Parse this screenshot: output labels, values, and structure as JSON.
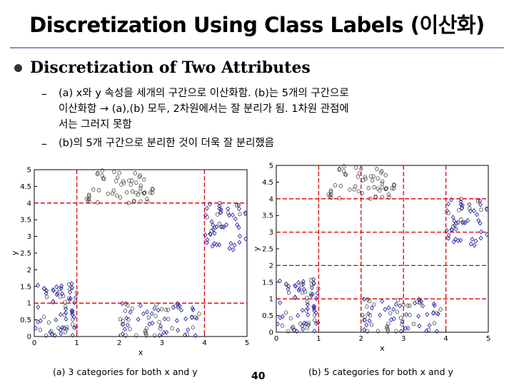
{
  "title": "Discretization Using Class Labels (이산화)",
  "bullet": "Discretization of Two Attributes",
  "sub1_lines": [
    "(a) x와 y 속성을 세개의 구간으로 이산화함. (b)는 5개의 구간으로",
    "이산화함 → (a),(b) 모두, 2차원에서는 잘 분리가 됨. 1차원 관점에",
    "서는 그러지 못함"
  ],
  "sub2": "(b)의 5개 구간으로 분리한 것이 더욱 잘 분리했음",
  "caption_a": "(a)  3 categories for both x and y",
  "caption_b": "(b)  5 categories for both x and y",
  "page_number": "40",
  "colors": {
    "circle": "#444444",
    "diamond": "#2b2bb0",
    "split_line": "#d40000",
    "rule": "#8e8ec4"
  },
  "chart_data": [
    {
      "type": "scatter",
      "xlabel": "x",
      "ylabel": "y",
      "xlim": [
        0,
        5
      ],
      "ylim": [
        0,
        5
      ],
      "xticks": [
        "0",
        "1",
        "2",
        "3",
        "4",
        "5"
      ],
      "yticks": [
        "0",
        "0.5",
        "1",
        "1.5",
        "2",
        "2.5",
        "3",
        "3.5",
        "4",
        "4.5",
        "5"
      ],
      "splits": {
        "x": [
          1.0,
          4.0
        ],
        "y": [
          1.0,
          4.0
        ]
      }
    },
    {
      "type": "scatter",
      "xlabel": "x",
      "ylabel": "y",
      "xlim": [
        0,
        5
      ],
      "ylim": [
        0,
        5
      ],
      "xticks": [
        "0",
        "1",
        "2",
        "3",
        "4",
        "5"
      ],
      "yticks": [
        "0",
        "0.5",
        "1",
        "1.5",
        "2",
        "2.5",
        "3",
        "3.5",
        "4",
        "4.5",
        "5"
      ],
      "splits": {
        "x": [
          1.0,
          2.0,
          3.0,
          4.0
        ],
        "y": [
          1.0,
          2.0,
          3.0,
          4.0
        ]
      }
    }
  ],
  "point_clusters": [
    {
      "shape": "circle",
      "x": [
        1.2,
        2.8
      ],
      "y": [
        4.0,
        5.0
      ],
      "count": 55
    },
    {
      "shape": "diamond",
      "x": [
        4.0,
        5.0
      ],
      "y": [
        2.5,
        4.0
      ],
      "count": 40
    },
    {
      "shape": "diamond",
      "x": [
        0.0,
        1.0
      ],
      "y": [
        0.0,
        1.6
      ],
      "count": 45
    },
    {
      "shape": "circle",
      "x": [
        0.0,
        1.0
      ],
      "y": [
        0.0,
        1.6
      ],
      "count": 25
    },
    {
      "shape": "circle",
      "x": [
        2.0,
        4.0
      ],
      "y": [
        0.0,
        1.0
      ],
      "count": 35
    },
    {
      "shape": "diamond",
      "x": [
        2.0,
        4.0
      ],
      "y": [
        0.0,
        1.0
      ],
      "count": 35
    },
    {
      "shape": "circle",
      "x": [
        4.0,
        5.0
      ],
      "y": [
        3.0,
        4.0
      ],
      "count": 12
    }
  ]
}
